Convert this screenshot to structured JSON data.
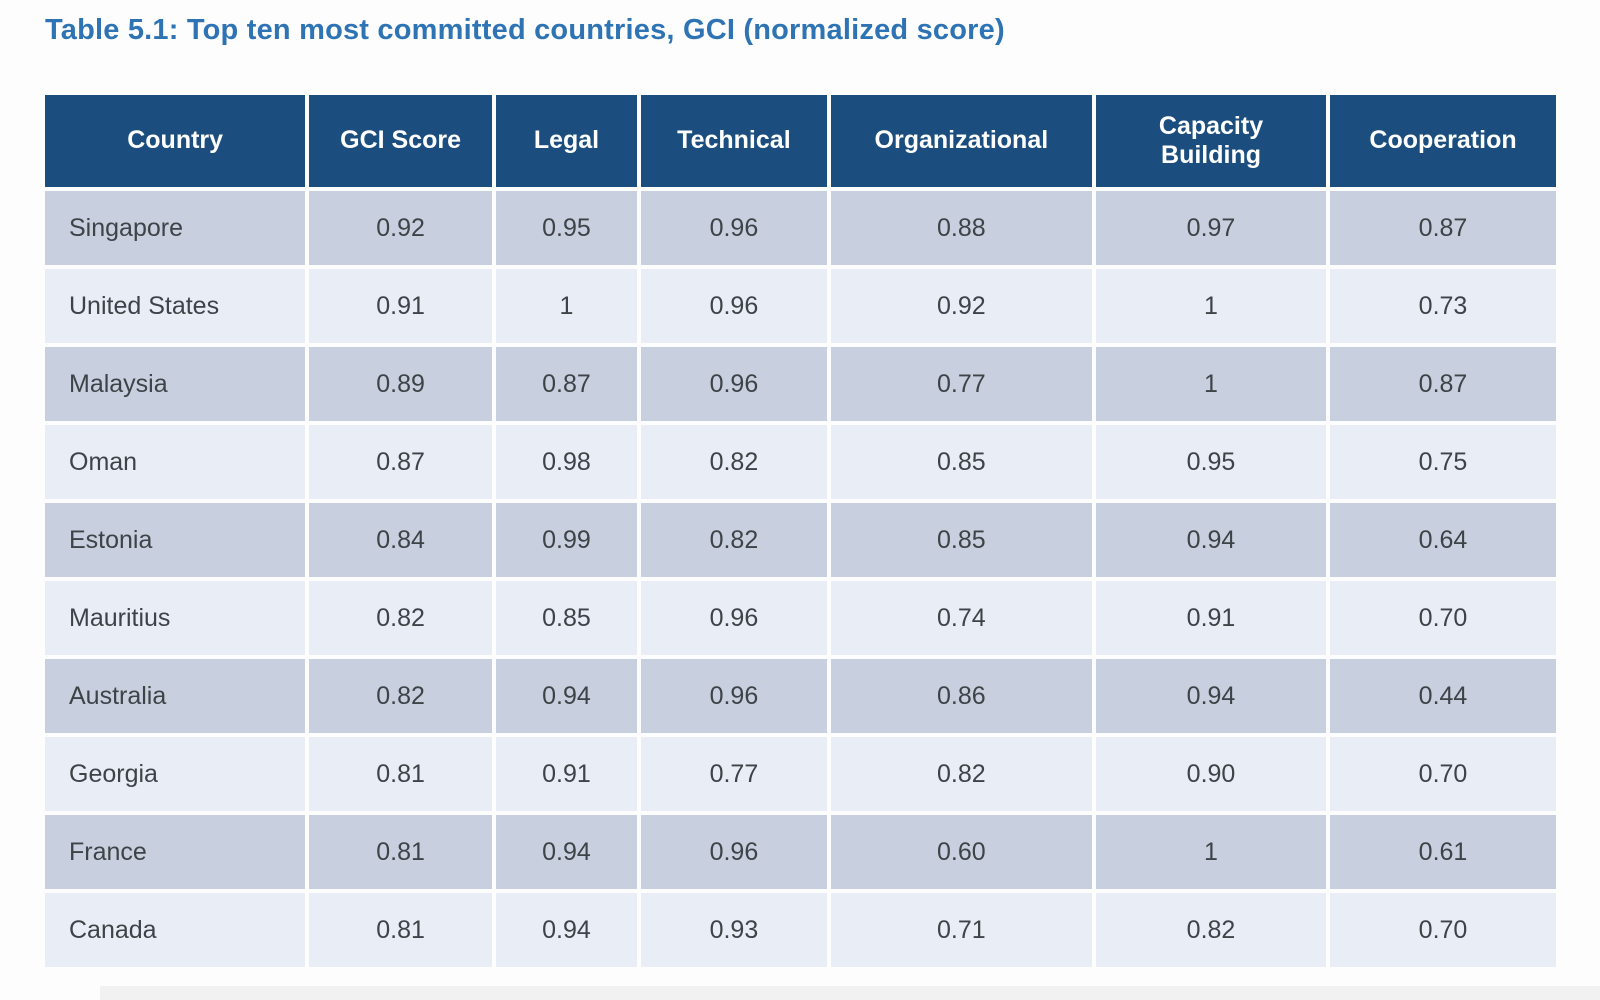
{
  "title": "Table 5.1: Top ten most committed countries, GCI (normalized score)",
  "colors": {
    "title_text": "#2E74B5",
    "header_bg": "#1B4E7E",
    "header_text": "#FFFFFF",
    "row_odd_bg": "#C8D0DF",
    "row_even_bg": "#E9EDF5",
    "cell_text": "#3E4347"
  },
  "chart_data": {
    "type": "table",
    "title": "Table 5.1: Top ten most committed countries, GCI (normalized score)",
    "columns": [
      "Country",
      "GCI Score",
      "Legal",
      "Technical",
      "Organizational",
      "Capacity Building",
      "Cooperation"
    ],
    "rows": [
      [
        "Singapore",
        "0.92",
        "0.95",
        "0.96",
        "0.88",
        "0.97",
        "0.87"
      ],
      [
        "United States",
        "0.91",
        "1",
        "0.96",
        "0.92",
        "1",
        "0.73"
      ],
      [
        "Malaysia",
        "0.89",
        "0.87",
        "0.96",
        "0.77",
        "1",
        "0.87"
      ],
      [
        "Oman",
        "0.87",
        "0.98",
        "0.82",
        "0.85",
        "0.95",
        "0.75"
      ],
      [
        "Estonia",
        "0.84",
        "0.99",
        "0.82",
        "0.85",
        "0.94",
        "0.64"
      ],
      [
        "Mauritius",
        "0.82",
        "0.85",
        "0.96",
        "0.74",
        "0.91",
        "0.70"
      ],
      [
        "Australia",
        "0.82",
        "0.94",
        "0.96",
        "0.86",
        "0.94",
        "0.44"
      ],
      [
        "Georgia",
        "0.81",
        "0.91",
        "0.77",
        "0.82",
        "0.90",
        "0.70"
      ],
      [
        "France",
        "0.81",
        "0.94",
        "0.96",
        "0.60",
        "1",
        "0.61"
      ],
      [
        "Canada",
        "0.81",
        "0.94",
        "0.93",
        "0.71",
        "0.82",
        "0.70"
      ]
    ]
  }
}
